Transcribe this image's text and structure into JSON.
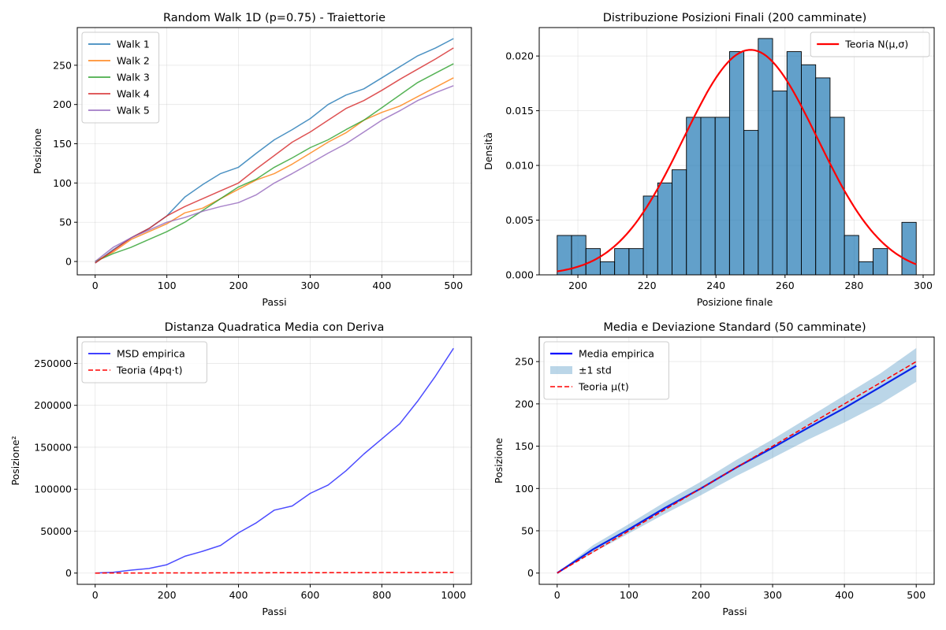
{
  "figure": {
    "background": "#ffffff"
  },
  "chart_data": [
    {
      "id": "trajectories",
      "type": "line",
      "title": "Random Walk 1D (p=0.75) - Traiettorie",
      "xlabel": "Passi",
      "ylabel": "Posizione",
      "xlim": [
        -25,
        525
      ],
      "ylim": [
        -17,
        298
      ],
      "xticks": [
        0,
        100,
        200,
        300,
        400,
        500
      ],
      "yticks": [
        0,
        50,
        100,
        150,
        200,
        250
      ],
      "grid": true,
      "legend": "top-left",
      "series": [
        {
          "name": "Walk 1",
          "color": "#1f77b4",
          "x": [
            0,
            25,
            50,
            75,
            100,
            125,
            150,
            175,
            200,
            225,
            250,
            275,
            300,
            325,
            350,
            375,
            400,
            425,
            450,
            475,
            500
          ],
          "y": [
            -2,
            15,
            30,
            42,
            58,
            82,
            98,
            112,
            120,
            138,
            155,
            168,
            182,
            200,
            212,
            220,
            234,
            248,
            262,
            272,
            284
          ]
        },
        {
          "name": "Walk 2",
          "color": "#ff7f0e",
          "x": [
            0,
            25,
            50,
            75,
            100,
            125,
            150,
            175,
            200,
            225,
            250,
            275,
            300,
            325,
            350,
            375,
            400,
            425,
            450,
            475,
            500
          ],
          "y": [
            0,
            12,
            28,
            38,
            48,
            62,
            68,
            80,
            92,
            104,
            112,
            124,
            138,
            152,
            164,
            180,
            190,
            198,
            210,
            222,
            234
          ]
        },
        {
          "name": "Walk 3",
          "color": "#2ca02c",
          "x": [
            0,
            25,
            50,
            75,
            100,
            125,
            150,
            175,
            200,
            225,
            250,
            275,
            300,
            325,
            350,
            375,
            400,
            425,
            450,
            475,
            500
          ],
          "y": [
            0,
            10,
            18,
            28,
            38,
            50,
            65,
            80,
            95,
            105,
            120,
            132,
            145,
            155,
            168,
            180,
            196,
            212,
            228,
            240,
            252
          ]
        },
        {
          "name": "Walk 4",
          "color": "#d62728",
          "x": [
            0,
            25,
            50,
            75,
            100,
            125,
            150,
            175,
            200,
            225,
            250,
            275,
            300,
            325,
            350,
            375,
            400,
            425,
            450,
            475,
            500
          ],
          "y": [
            -2,
            14,
            30,
            42,
            58,
            70,
            80,
            90,
            100,
            118,
            135,
            152,
            165,
            180,
            195,
            205,
            218,
            232,
            245,
            258,
            272
          ]
        },
        {
          "name": "Walk 5",
          "color": "#9467bd",
          "x": [
            0,
            25,
            50,
            75,
            100,
            125,
            150,
            175,
            200,
            225,
            250,
            275,
            300,
            325,
            350,
            375,
            400,
            425,
            450,
            475,
            500
          ],
          "y": [
            0,
            18,
            30,
            40,
            50,
            56,
            64,
            70,
            75,
            85,
            100,
            112,
            125,
            138,
            150,
            165,
            180,
            192,
            205,
            215,
            224
          ]
        }
      ]
    },
    {
      "id": "histogram",
      "type": "bar",
      "title": "Distribuzione Posizioni Finali (200 camminate)",
      "xlabel": "Posizione finale",
      "ylabel": "Densità",
      "xlim": [
        188.8,
        303.2
      ],
      "ylim": [
        0,
        0.0226
      ],
      "xticks": [
        200,
        220,
        240,
        260,
        280,
        300
      ],
      "yticks": [
        0.0,
        0.005,
        0.01,
        0.015,
        0.02
      ],
      "ytick_labels": [
        "0.000",
        "0.005",
        "0.010",
        "0.015",
        "0.020"
      ],
      "grid": true,
      "legend": "top-right",
      "bar_color": "#1f77b4",
      "bin_width": 4.16,
      "bins": [
        194,
        198.16,
        202.32,
        206.48,
        210.64,
        214.8,
        218.96,
        223.12,
        227.28,
        231.44,
        235.6,
        239.76,
        243.92,
        248.08,
        252.24,
        256.4,
        260.56,
        264.72,
        268.88,
        273.04,
        277.2,
        281.36,
        285.52,
        289.68,
        293.84
      ],
      "values": [
        0.0036,
        0.0036,
        0.0024,
        0.0012,
        0.0024,
        0.0024,
        0.0072,
        0.0084,
        0.0096,
        0.0144,
        0.0144,
        0.0144,
        0.0204,
        0.0132,
        0.0216,
        0.0168,
        0.0204,
        0.0192,
        0.018,
        0.0144,
        0.0036,
        0.0012,
        0.0024,
        0.0,
        0.0048
      ],
      "series": [
        {
          "name": "Teoria N(μ,σ)",
          "color": "#ff0000",
          "mu": 250,
          "sigma": 19.4,
          "x_range": [
            194,
            298
          ]
        }
      ]
    },
    {
      "id": "msd",
      "type": "line",
      "title": "Distanza Quadratica Media con Deriva",
      "xlabel": "Passi",
      "ylabel": "Posizione²",
      "xlim": [
        -50,
        1050
      ],
      "ylim": [
        -13400,
        281400
      ],
      "xticks": [
        0,
        200,
        400,
        600,
        800,
        1000
      ],
      "yticks": [
        0,
        50000,
        100000,
        150000,
        200000,
        250000
      ],
      "grid": true,
      "legend": "top-left",
      "series": [
        {
          "name": "MSD empirica",
          "color": "#0000ff",
          "style": "solid",
          "x": [
            0,
            50,
            100,
            150,
            200,
            250,
            300,
            350,
            400,
            450,
            500,
            550,
            600,
            650,
            700,
            750,
            800,
            850,
            900,
            950,
            1000
          ],
          "y": [
            0,
            1000,
            3500,
            5500,
            10000,
            20000,
            26000,
            33000,
            48000,
            60000,
            75000,
            80000,
            95000,
            105000,
            122000,
            142000,
            160000,
            178000,
            205000,
            235000,
            268000
          ]
        },
        {
          "name": "Teoria (4pq·t)",
          "color": "#ff0000",
          "style": "dashed",
          "x": [
            0,
            1000
          ],
          "y": [
            0,
            750
          ]
        }
      ]
    },
    {
      "id": "mean-std",
      "type": "line",
      "title": "Media e Deviazione Standard (50 camminate)",
      "xlabel": "Passi",
      "ylabel": "Posizione",
      "xlim": [
        -25,
        525
      ],
      "ylim": [
        -13.3,
        279
      ],
      "xticks": [
        0,
        100,
        200,
        300,
        400,
        500
      ],
      "yticks": [
        0,
        50,
        100,
        150,
        200,
        250
      ],
      "grid": true,
      "legend": "top-left",
      "series": [
        {
          "name": "Media empirica",
          "color": "#0000ff",
          "style": "solid",
          "x": [
            0,
            50,
            100,
            150,
            200,
            250,
            300,
            350,
            400,
            450,
            500
          ],
          "y": [
            0,
            28,
            52,
            77,
            100,
            125,
            148,
            172,
            195,
            220,
            245
          ]
        },
        {
          "name": "±1 std",
          "color": "#1f77b4",
          "style": "band",
          "x": [
            0,
            50,
            100,
            150,
            200,
            250,
            300,
            350,
            400,
            450,
            500
          ],
          "lower": [
            0,
            24,
            47,
            70,
            92,
            115,
            136,
            158,
            178,
            200,
            226
          ],
          "upper": [
            0,
            33,
            58,
            84,
            108,
            134,
            158,
            184,
            210,
            236,
            266
          ]
        },
        {
          "name": "Teoria μ(t)",
          "color": "#ff0000",
          "style": "dashed",
          "x": [
            0,
            500
          ],
          "y": [
            0,
            250
          ]
        }
      ]
    }
  ]
}
